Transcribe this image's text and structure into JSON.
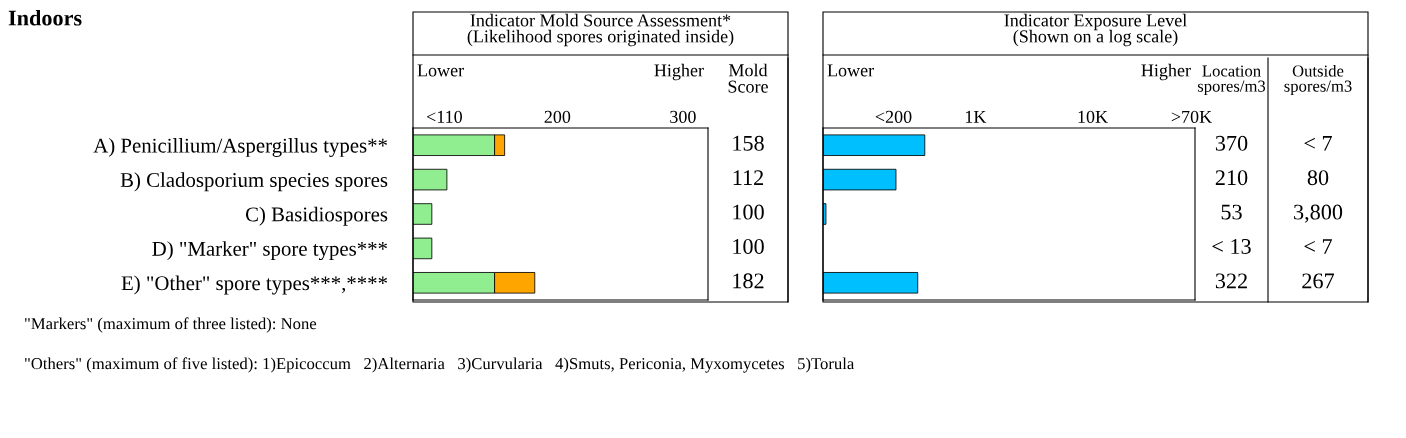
{
  "chart_data": [
    {
      "type": "bar",
      "orientation": "horizontal",
      "title": "Indicator Mold Source Assessment*",
      "subtitle": "(Likelihood spores originated inside)",
      "categories": [
        "A) Penicillium/Aspergillus types**",
        "B) Cladosporium species spores",
        "C) Basidiospores",
        "D) \"Marker\" spore types***",
        "E) \"Other\" spore types***,****"
      ],
      "series": [
        {
          "color": "#90ee90",
          "values": [
            150,
            112,
            100,
            100,
            150
          ]
        },
        {
          "color": "#ffa500",
          "values": [
            8,
            null,
            null,
            null,
            32
          ],
          "base": [
            150,
            null,
            null,
            null,
            150
          ]
        }
      ],
      "value_labels": [
        "158",
        "112",
        "100",
        "100",
        "182"
      ],
      "xlim": [
        85,
        320
      ],
      "xticks": [
        {
          "value": 110,
          "label": "<110"
        },
        200,
        300
      ],
      "annotations": [
        "Indoors",
        "Lower",
        "Higher",
        "Mold Score",
        "\"Markers\" (maximum of three listed): None",
        "\"Others\" (maximum of five listed): 1)Epicoccum   2)Alternaria   3)Curvularia   4)Smuts, Periconia, Myxomycetes   5)Torula"
      ]
    },
    {
      "type": "bar",
      "orientation": "horizontal",
      "title": "Indicator Exposure Level",
      "subtitle": "(Shown on a log scale)",
      "log": "x",
      "tick_labels": "x",
      "categories": [
        null,
        null,
        null,
        null,
        null
      ],
      "series": [
        {
          "color": "#00bfff",
          "values": [
            370,
            210,
            53,
            null,
            322
          ]
        }
      ],
      "value_labels": [
        "370",
        "210",
        "53",
        "< 13",
        "322"
      ],
      "xlim": [
        50,
        75000
      ],
      "xticks": [
        {
          "value": 200,
          "label": "<200"
        },
        {
          "value": 1000,
          "label": "1K"
        },
        {
          "value": 10000,
          "label": "10K"
        },
        {
          "value": 70000,
          "label": ">70K"
        }
      ],
      "annotations": [
        "Lower",
        "Higher",
        "Location spores/m3",
        "Outside spores/m3",
        "< 7",
        "80",
        "3,800",
        "< 7",
        "267"
      ]
    }
  ]
}
